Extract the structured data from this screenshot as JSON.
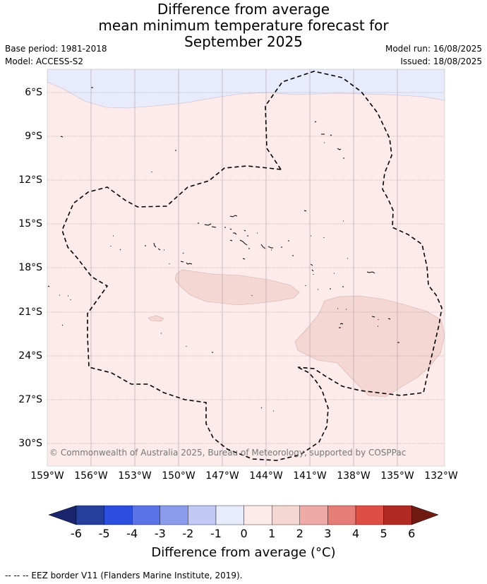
{
  "header": {
    "title_line1": "Difference from average",
    "title_line2": "mean minimum temperature forecast for",
    "title_line3": "September 2025",
    "base_period": "Base period: 1981-2018",
    "model": "Model: ACCESS-S2",
    "model_run": "Model run: 16/08/2025",
    "issued": "Issued: 18/08/2025"
  },
  "map": {
    "lat_labels": [
      "6°S",
      "9°S",
      "12°S",
      "15°S",
      "18°S",
      "21°S",
      "24°S",
      "27°S",
      "30°S"
    ],
    "lon_labels": [
      "159°W",
      "156°W",
      "153°W",
      "150°W",
      "147°W",
      "144°W",
      "141°W",
      "138°W",
      "135°W",
      "132°W"
    ],
    "credit": "© Commonwealth of Australia 2025, Bureau of Meteorology, supported by COSPPac",
    "colors": {
      "background_anomaly": "#fcebea",
      "cool_band": "#e8ebfc",
      "warm_patch": "#f4d6d3",
      "eez_border": "#000000"
    }
  },
  "colorbar": {
    "ticks": [
      "-6",
      "-5",
      "-4",
      "-3",
      "-2",
      "-1",
      "0",
      "1",
      "2",
      "3",
      "4",
      "5",
      "6"
    ],
    "label": "Difference from average (°C)",
    "colors": [
      "#263e9c",
      "#2d4fe0",
      "#5a73e6",
      "#8c9cec",
      "#c3c9f5",
      "#e8ebfc",
      "#fcebea",
      "#f4d6d3",
      "#eeaaa6",
      "#e67e78",
      "#de4e44",
      "#b02a22"
    ],
    "under_color": "#19266e",
    "over_color": "#701a14"
  },
  "footer": {
    "legend": "--  --  -- EEZ border V11 (Flanders Marine Institute, 2019)."
  }
}
